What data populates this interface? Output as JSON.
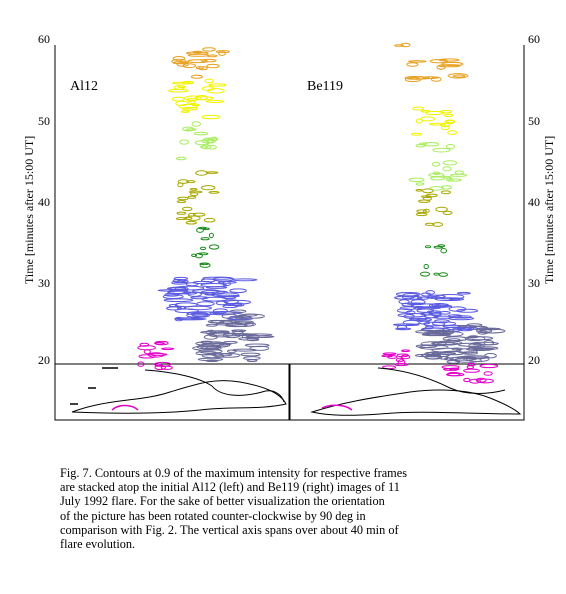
{
  "figure": {
    "y_axis": {
      "title": "Time [minutes after 15:00 UT]",
      "ticks": [
        "20",
        "30",
        "40",
        "50",
        "60"
      ],
      "range": [
        13,
        60
      ]
    },
    "panels": [
      {
        "label": "Al12"
      },
      {
        "label": "Be119"
      }
    ],
    "colors": {
      "orange": "#e8a020",
      "yellow": "#f2f200",
      "light_green": "#a8ee60",
      "olive": "#a8a800",
      "green": "#1c8c1c",
      "blue": "#5a5ae0",
      "slate": "#6a6a9a",
      "magenta": "#e000c8",
      "black": "#000000"
    }
  },
  "caption": {
    "lines": [
      "Fig. 7. Contours at 0.9 of the maximum intensity for respective frames",
      "are stacked atop the initial Al12 (left) and Be119 (right) images of 11",
      "July   1992 flare. For the sake of better visualization the orientation",
      "of  the  picture  has  been  rotated  counter-clockwise  by   90 deg in",
      "comparison  with   Fig. 2. The vertical axis spans over about 40 min of",
      "flare evolution."
    ]
  }
}
